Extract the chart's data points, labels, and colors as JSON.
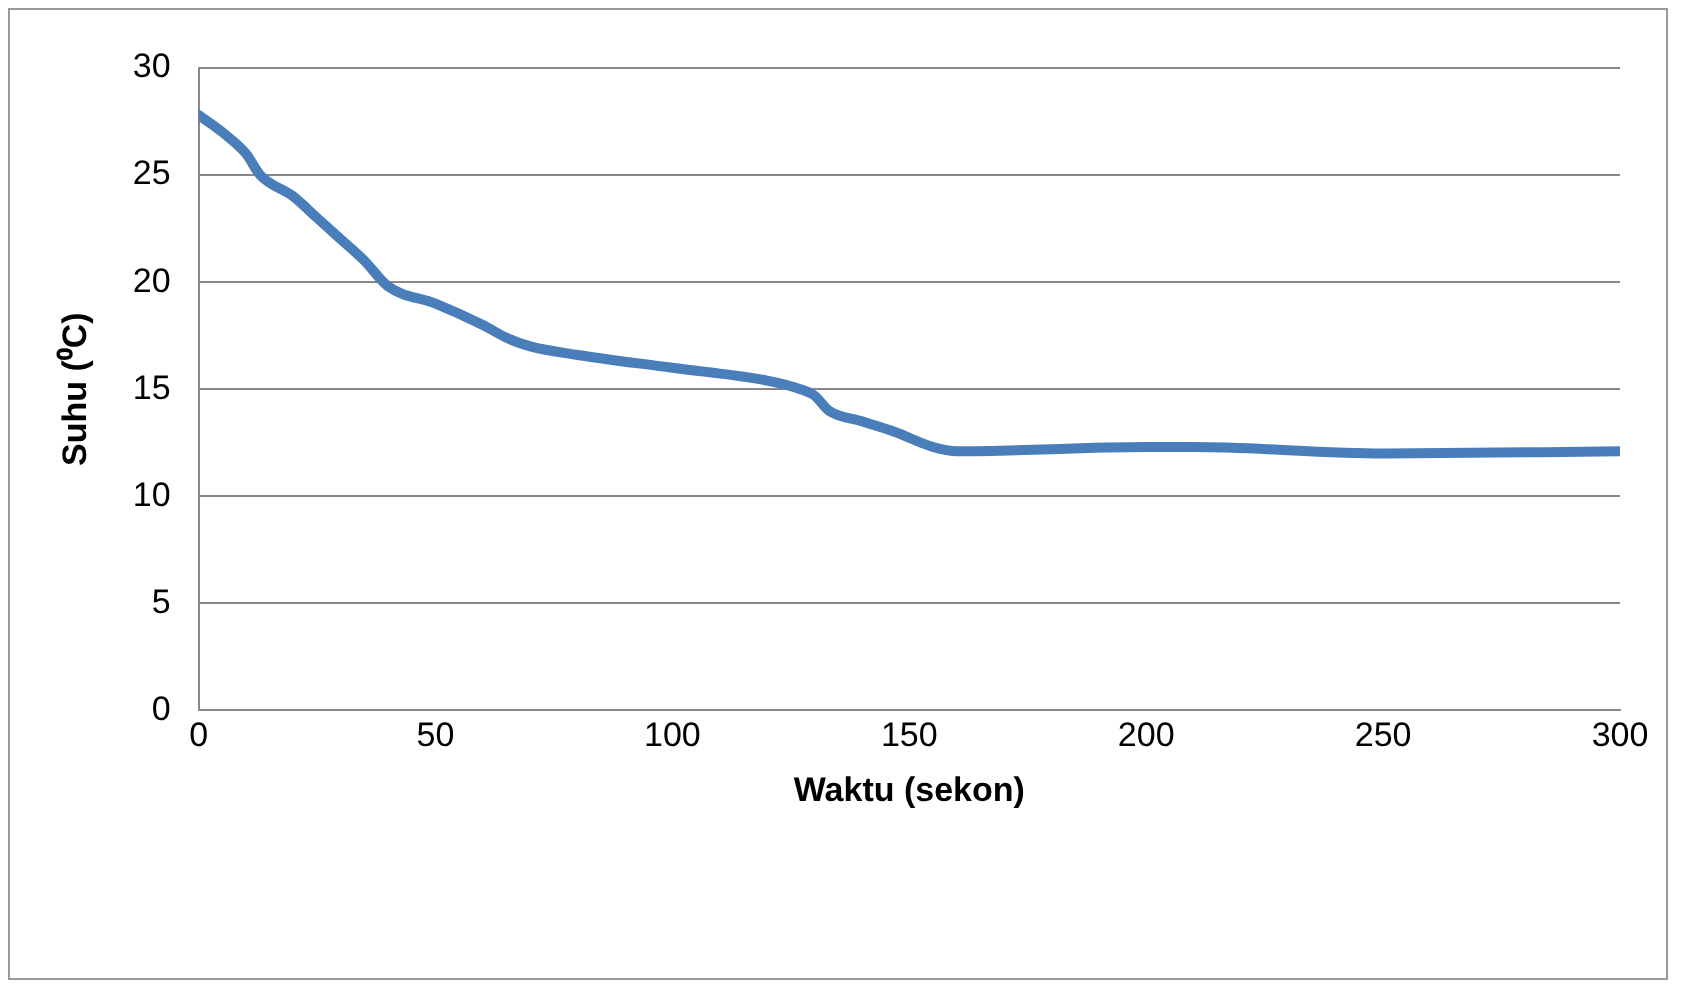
{
  "chart_data": {
    "type": "line",
    "xlabel": "Waktu (sekon)",
    "ylabel": "Suhu (⁰C)",
    "x": [
      0,
      5,
      10,
      13,
      20,
      25,
      30,
      35,
      40,
      50,
      60,
      65,
      70,
      80,
      100,
      120,
      127,
      130,
      133,
      140,
      147,
      155,
      160,
      200,
      210,
      250,
      300
    ],
    "series": [
      {
        "color": "#4a7ebb",
        "values": [
          27.8,
          27,
          26,
          25,
          24,
          23,
          22,
          21,
          19.8,
          19,
          18,
          17.4,
          17,
          16.6,
          16,
          15.4,
          15,
          14.7,
          14,
          13.5,
          13,
          12.3,
          12.1,
          12.3,
          12.3,
          12,
          12.1
        ]
      }
    ],
    "xlim": [
      0,
      300
    ],
    "xticks": [
      0,
      50,
      100,
      150,
      200,
      250,
      300
    ],
    "ylim": [
      0,
      30
    ],
    "yticks": [
      0,
      5,
      10,
      15,
      20,
      25,
      30
    ],
    "grid": "y",
    "legend": false,
    "marker": "none",
    "line_style": "solid"
  }
}
